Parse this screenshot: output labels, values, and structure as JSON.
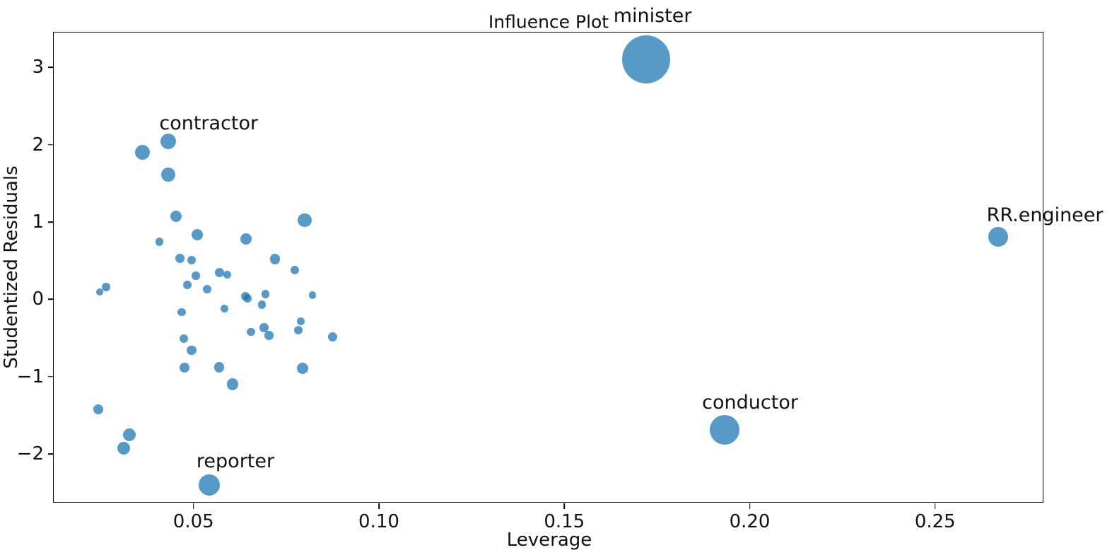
{
  "chart_data": {
    "type": "scatter",
    "title": "Influence Plot",
    "xlabel": "Leverage",
    "ylabel": "Studentized Residuals",
    "xlim": [
      0.0123,
      0.2794
    ],
    "ylim": [
      -2.641,
      3.452
    ],
    "grid": false,
    "legend": "none",
    "bubble_color": "#1f77b4",
    "bubble_opacity": 0.75,
    "bubble_rgba": "rgba(31,119,180,0.75)",
    "x_ticks": [
      {
        "value": 0.05,
        "label": "0.05"
      },
      {
        "value": 0.1,
        "label": "0.10"
      },
      {
        "value": 0.15,
        "label": "0.15"
      },
      {
        "value": 0.2,
        "label": "0.20"
      },
      {
        "value": 0.25,
        "label": "0.25"
      }
    ],
    "y_ticks": [
      {
        "value": 3,
        "label": "3"
      },
      {
        "value": 2,
        "label": "2"
      },
      {
        "value": 1,
        "label": "1"
      },
      {
        "value": 0,
        "label": "0"
      },
      {
        "value": -1,
        "label": "−1"
      },
      {
        "value": -2,
        "label": "−2"
      }
    ],
    "points": [
      {
        "x": 0.172,
        "y": 3.101,
        "r": 34,
        "name": "minister"
      },
      {
        "x": 0.0431,
        "y": 2.046,
        "r": 11,
        "name": "contractor"
      },
      {
        "x": 0.0543,
        "y": -2.401,
        "r": 15,
        "name": "reporter"
      },
      {
        "x": 0.1932,
        "y": -1.693,
        "r": 21,
        "name": "conductor"
      },
      {
        "x": 0.2671,
        "y": 0.81,
        "r": 14,
        "name": "RR.engineer"
      },
      {
        "x": 0.0363,
        "y": 1.903,
        "r": 10.5
      },
      {
        "x": 0.0431,
        "y": 1.613,
        "r": 10
      },
      {
        "x": 0.0452,
        "y": 1.076,
        "r": 8
      },
      {
        "x": 0.051,
        "y": 0.838,
        "r": 8
      },
      {
        "x": 0.0408,
        "y": 0.744,
        "r": 5.7
      },
      {
        "x": 0.08,
        "y": 1.021,
        "r": 9.7
      },
      {
        "x": 0.0641,
        "y": 0.781,
        "r": 8
      },
      {
        "x": 0.072,
        "y": 0.522,
        "r": 7.3
      },
      {
        "x": 0.0774,
        "y": 0.375,
        "r": 6
      },
      {
        "x": 0.057,
        "y": 0.344,
        "r": 6.3
      },
      {
        "x": 0.0591,
        "y": 0.317,
        "r": 5.7
      },
      {
        "x": 0.0463,
        "y": 0.527,
        "r": 6.3
      },
      {
        "x": 0.0494,
        "y": 0.509,
        "r": 6
      },
      {
        "x": 0.0506,
        "y": 0.305,
        "r": 5.7
      },
      {
        "x": 0.0484,
        "y": 0.186,
        "r": 6
      },
      {
        "x": 0.0536,
        "y": 0.128,
        "r": 6
      },
      {
        "x": 0.0264,
        "y": 0.158,
        "r": 5.7
      },
      {
        "x": 0.0247,
        "y": 0.094,
        "r": 5.3
      },
      {
        "x": 0.0694,
        "y": 0.067,
        "r": 5.7
      },
      {
        "x": 0.064,
        "y": 0.037,
        "r": 6
      },
      {
        "x": 0.0646,
        "y": 0.012,
        "r": 6
      },
      {
        "x": 0.0684,
        "y": -0.07,
        "r": 5.7
      },
      {
        "x": 0.0583,
        "y": -0.122,
        "r": 5.7
      },
      {
        "x": 0.0821,
        "y": 0.055,
        "r": 5.3
      },
      {
        "x": 0.0468,
        "y": -0.168,
        "r": 5.7
      },
      {
        "x": 0.0655,
        "y": -0.421,
        "r": 5.7
      },
      {
        "x": 0.069,
        "y": -0.369,
        "r": 6.3
      },
      {
        "x": 0.0704,
        "y": -0.467,
        "r": 6.3
      },
      {
        "x": 0.0789,
        "y": -0.287,
        "r": 5.3
      },
      {
        "x": 0.0782,
        "y": -0.397,
        "r": 6
      },
      {
        "x": 0.0875,
        "y": -0.488,
        "r": 6.7
      },
      {
        "x": 0.0473,
        "y": -0.507,
        "r": 6
      },
      {
        "x": 0.0495,
        "y": -0.662,
        "r": 6.7
      },
      {
        "x": 0.0476,
        "y": -0.888,
        "r": 7
      },
      {
        "x": 0.0569,
        "y": -0.878,
        "r": 7.3
      },
      {
        "x": 0.0605,
        "y": -1.098,
        "r": 8.3
      },
      {
        "x": 0.0794,
        "y": -0.891,
        "r": 8
      },
      {
        "x": 0.0243,
        "y": -1.422,
        "r": 7
      },
      {
        "x": 0.0327,
        "y": -1.754,
        "r": 9
      },
      {
        "x": 0.0312,
        "y": -1.928,
        "r": 9.3
      }
    ],
    "annotations": [
      {
        "text": "minister",
        "x": 0.1738,
        "y": 3.66
      },
      {
        "text": "contractor",
        "x": 0.0541,
        "y": 2.27
      },
      {
        "text": "reporter",
        "x": 0.0613,
        "y": -2.1
      },
      {
        "text": "conductor",
        "x": 0.2001,
        "y": -1.34
      },
      {
        "text": "RR.engineer",
        "x": 0.2796,
        "y": 1.08
      }
    ]
  }
}
